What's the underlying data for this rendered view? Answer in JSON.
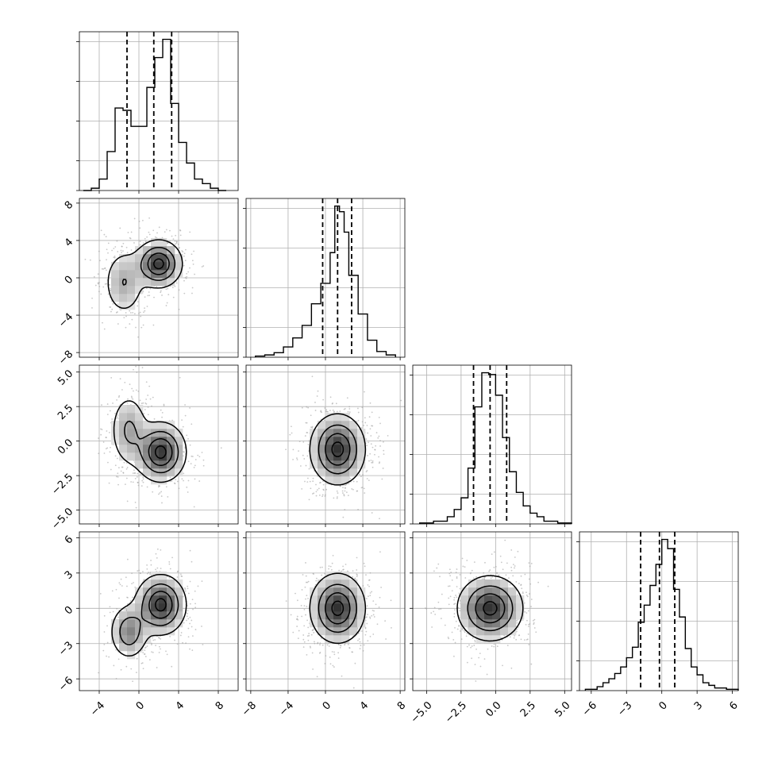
{
  "chart_data": {
    "type": "corner",
    "colors": {
      "scatter": "#9a9a9a",
      "grid": "#b0b0b0",
      "line": "#000000",
      "density_max": "#3a3a3a"
    },
    "grid": true,
    "variables": [
      {
        "range": [
          -6,
          10
        ],
        "ticks": [
          -4,
          0,
          4,
          8
        ],
        "tick_labels": [
          "−4",
          "0",
          "4",
          "8"
        ]
      },
      {
        "range": [
          -8.5,
          8.5
        ],
        "ticks": [
          -8,
          -4,
          0,
          4,
          8
        ],
        "tick_labels": [
          "−8",
          "−4",
          "0",
          "4",
          "8"
        ]
      },
      {
        "range": [
          -6,
          5.5
        ],
        "ticks": [
          -5.0,
          -2.5,
          0.0,
          2.5,
          5.0
        ],
        "tick_labels": [
          "−5.0",
          "−2.5",
          "0.0",
          "2.5",
          "5.0"
        ]
      },
      {
        "range": [
          -7,
          6.5
        ],
        "ticks": [
          -6,
          -3,
          0,
          3,
          6
        ],
        "tick_labels": [
          "−6",
          "−3",
          "0",
          "3",
          "6"
        ]
      }
    ],
    "quantiles": [
      [
        -1.2,
        1.5,
        3.3
      ],
      [
        -0.3,
        1.3,
        2.8
      ],
      [
        -1.6,
        -0.4,
        0.8
      ],
      [
        -1.8,
        -0.2,
        1.1
      ]
    ],
    "histograms": [
      {
        "bin_edges": [
          -5.6,
          -4.8,
          -4.0,
          -3.2,
          -2.4,
          -1.6,
          -0.8,
          0.0,
          0.8,
          1.6,
          2.4,
          3.2,
          4.0,
          4.8,
          5.6,
          6.4,
          7.2,
          8.0,
          8.8
        ],
        "counts": [
          0,
          1,
          5,
          17,
          36,
          35,
          28,
          28,
          45,
          58,
          66,
          38,
          21,
          12,
          5,
          3,
          1,
          0
        ]
      },
      {
        "bin_edges": [
          -7.5,
          -6.5,
          -5.5,
          -4.5,
          -3.5,
          -2.5,
          -1.5,
          -0.5,
          0.5,
          1.0,
          1.5,
          2.0,
          2.5,
          3.5,
          4.5,
          5.5,
          6.5,
          7.5
        ],
        "counts": [
          1,
          2,
          4,
          9,
          17,
          28,
          47,
          65,
          92,
          133,
          128,
          110,
          72,
          38,
          15,
          5,
          2
        ]
      },
      {
        "bin_edges": [
          -5.5,
          -4.5,
          -3.5,
          -3.0,
          -2.5,
          -2.0,
          -1.5,
          -1.0,
          -0.5,
          0.0,
          0.5,
          1.0,
          1.5,
          2.0,
          2.5,
          3.0,
          3.5,
          4.5,
          5.5
        ],
        "counts": [
          1,
          3,
          8,
          16,
          29,
          62,
          130,
          168,
          166,
          143,
          96,
          58,
          35,
          20,
          12,
          8,
          3,
          1
        ]
      },
      {
        "bin_edges": [
          -6.5,
          -5.5,
          -5.0,
          -4.5,
          -4.0,
          -3.5,
          -3.0,
          -2.5,
          -2.0,
          -1.5,
          -1.0,
          -0.5,
          0.0,
          0.5,
          1.0,
          1.5,
          2.0,
          2.5,
          3.0,
          3.5,
          4.0,
          4.5,
          5.5,
          6.5
        ],
        "counts": [
          1,
          3,
          6,
          9,
          13,
          18,
          25,
          33,
          52,
          65,
          80,
          96,
          115,
          108,
          77,
          56,
          32,
          18,
          12,
          6,
          4,
          2,
          1
        ]
      }
    ],
    "pairs": [
      {
        "x": 0,
        "y": 1,
        "components": [
          {
            "w": 0.65,
            "mx": 2.0,
            "my": 1.5,
            "sx": 1.2,
            "sy": 1.3
          },
          {
            "w": 0.35,
            "mx": -1.5,
            "my": -0.5,
            "sx": 1.1,
            "sy": 1.9
          }
        ]
      },
      {
        "x": 0,
        "y": 2,
        "components": [
          {
            "w": 0.7,
            "mx": 2.2,
            "my": -0.8,
            "sx": 1.3,
            "sy": 1.1
          },
          {
            "w": 0.3,
            "mx": -1.0,
            "my": 0.8,
            "sx": 1.0,
            "sy": 1.4
          }
        ]
      },
      {
        "x": 1,
        "y": 2,
        "components": [
          {
            "w": 1.0,
            "mx": 1.3,
            "my": -0.6,
            "sx": 1.5,
            "sy": 1.3
          }
        ]
      },
      {
        "x": 0,
        "y": 3,
        "components": [
          {
            "w": 0.7,
            "mx": 2.2,
            "my": 0.3,
            "sx": 1.3,
            "sy": 1.3
          },
          {
            "w": 0.3,
            "mx": -1.0,
            "my": -2.0,
            "sx": 1.0,
            "sy": 1.2
          }
        ]
      },
      {
        "x": 1,
        "y": 3,
        "components": [
          {
            "w": 1.0,
            "mx": 1.3,
            "my": 0.0,
            "sx": 1.5,
            "sy": 1.5
          }
        ]
      },
      {
        "x": 2,
        "y": 3,
        "components": [
          {
            "w": 1.0,
            "mx": -0.4,
            "my": 0.0,
            "sx": 1.2,
            "sy": 1.4
          }
        ]
      }
    ]
  }
}
